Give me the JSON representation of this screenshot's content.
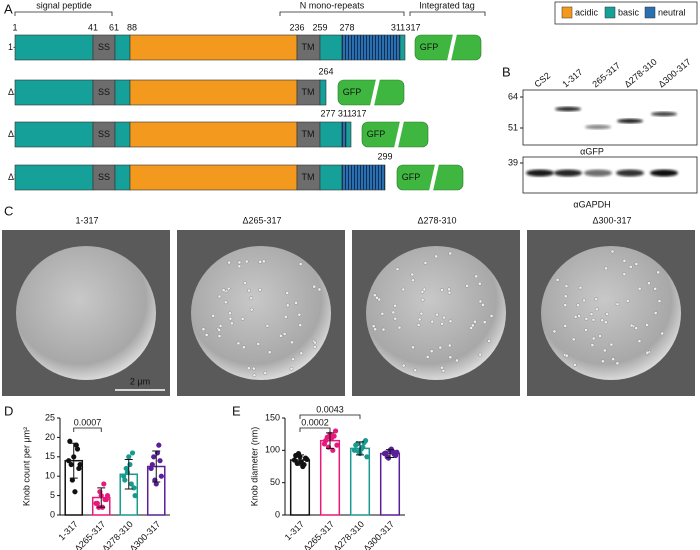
{
  "panels": {
    "A": {
      "label": "A",
      "headers": [
        "signal peptide",
        "N mono-repeats",
        "Integrated tag"
      ],
      "legend": [
        "acidic",
        "basic",
        "neutral"
      ],
      "positions": [
        "1",
        "41",
        "61",
        "88",
        "236",
        "259",
        "278",
        "311",
        "317"
      ],
      "constructs": [
        {
          "name": "1-317",
          "domains": [
            "SS",
            "TM"
          ],
          "tag": "GFP"
        },
        {
          "name": "Δ265-317",
          "domains": [
            "SS",
            "TM"
          ],
          "tag": "GFP",
          "ends": [
            "264"
          ]
        },
        {
          "name": "Δ278-310",
          "domains": [
            "SS",
            "TM"
          ],
          "tag": "GFP",
          "ends": [
            "277",
            "311",
            "317"
          ]
        },
        {
          "name": "Δ300-317",
          "domains": [
            "SS",
            "TM"
          ],
          "tag": "GFP",
          "ends": [
            "299"
          ]
        }
      ]
    },
    "B": {
      "label": "B",
      "lanes": [
        "CS2",
        "1-317",
        "265-317",
        "Δ278-310",
        "Δ300-317"
      ],
      "markers_top": [
        "64",
        "51"
      ],
      "markers_bottom": [
        "39"
      ],
      "antibodies": [
        "αGFP",
        "αGAPDH"
      ]
    },
    "C": {
      "label": "C",
      "titles": [
        "1-317",
        "Δ265-317",
        "Δ278-310",
        "Δ300-317"
      ],
      "scale": "2 μm"
    }
  },
  "chart_data": [
    {
      "type": "bar",
      "label": "D",
      "y_label": "Knob count per μm²",
      "categories": [
        "1-317",
        "Δ265-317",
        "Δ278-310",
        "Δ300-317"
      ],
      "values": [
        14,
        4.5,
        10.5,
        12.5
      ],
      "errors": [
        4.5,
        2.5,
        3.8,
        4
      ],
      "points": [
        [
          14,
          13,
          15,
          18,
          12,
          19,
          9,
          6,
          17,
          13
        ],
        [
          3,
          2,
          5,
          8,
          4,
          3,
          6,
          2,
          4,
          5
        ],
        [
          10,
          12,
          15,
          8,
          7,
          9,
          11,
          13,
          16,
          5
        ],
        [
          12,
          15,
          8,
          18,
          10,
          13,
          9,
          16,
          14
        ]
      ],
      "colors": [
        "#111111",
        "#e8197a",
        "#1a9a8f",
        "#5a1e9a"
      ],
      "ylim": [
        0,
        25
      ],
      "yticks": [
        0,
        5,
        10,
        15,
        20,
        25
      ],
      "annotations": [
        "0.0007"
      ]
    },
    {
      "type": "bar",
      "label": "E",
      "y_label": "Knob diameter (nm)",
      "categories": [
        "1-317",
        "Δ265-317",
        "Δ278-310",
        "Δ300-317"
      ],
      "values": [
        85,
        115,
        103,
        95
      ],
      "errors": [
        8,
        12,
        10,
        6
      ],
      "points": [
        [
          85,
          80,
          90,
          75,
          88,
          92,
          95,
          82,
          78,
          86
        ],
        [
          110,
          120,
          125,
          100,
          130,
          115,
          105,
          118,
          122,
          108
        ],
        [
          100,
          110,
          95,
          105,
          115,
          108,
          98,
          102,
          112,
          90
        ],
        [
          95,
          90,
          100,
          98,
          92,
          96,
          88,
          102,
          94,
          97
        ]
      ],
      "colors": [
        "#111111",
        "#e8197a",
        "#1a9a8f",
        "#5a1e9a"
      ],
      "ylim": [
        0,
        150
      ],
      "yticks": [
        0,
        50,
        100,
        150
      ],
      "annotations": [
        "0.0002",
        "0.0043"
      ]
    }
  ]
}
